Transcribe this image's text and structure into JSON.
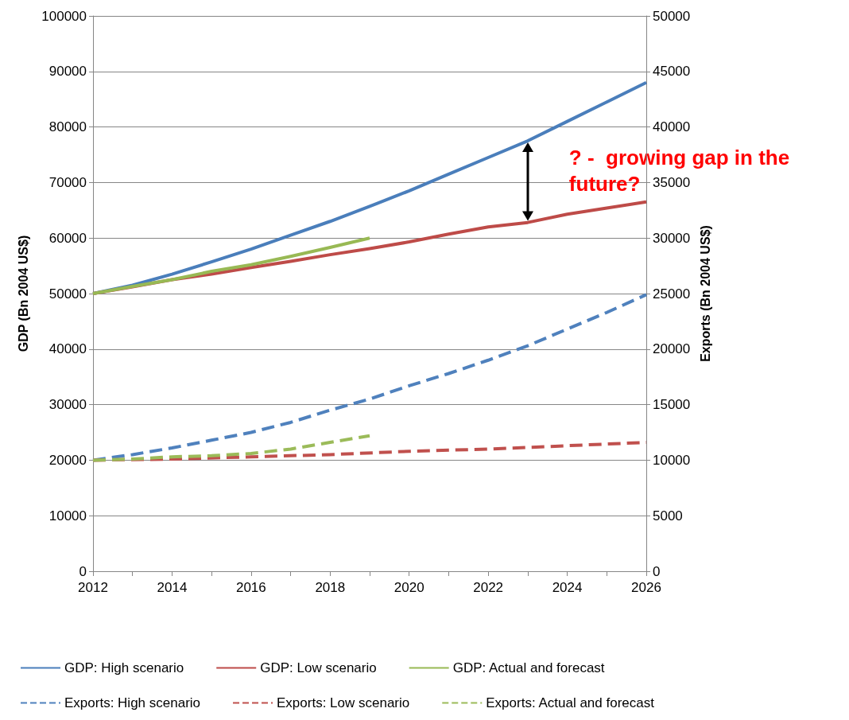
{
  "chart_data": {
    "type": "line",
    "ylabel": "GDP (Bn 2004 US$)",
    "y2label": "Exports (Bn 2004 US$)",
    "xlim": [
      2012,
      2026
    ],
    "xticks": [
      2012,
      {
        "value": 2013,
        "label": null
      },
      2014,
      {
        "value": 2015,
        "label": null
      },
      2016,
      {
        "value": 2017,
        "label": null
      },
      2018,
      {
        "value": 2019,
        "label": null
      },
      2020,
      {
        "value": 2021,
        "label": null
      },
      2022,
      {
        "value": 2023,
        "label": null
      },
      2024,
      {
        "value": 2025,
        "label": null
      },
      2026
    ],
    "ylim": [
      0,
      100000
    ],
    "yticks": [
      0,
      10000,
      20000,
      30000,
      40000,
      50000,
      60000,
      70000,
      80000,
      90000,
      100000
    ],
    "y2lim": [
      0,
      50000
    ],
    "y2ticks": [
      0,
      5000,
      10000,
      15000,
      20000,
      25000,
      30000,
      35000,
      40000,
      45000,
      50000
    ],
    "grid": "y",
    "legend": "bottom",
    "marker": "none",
    "annotations": [
      {
        "text": "? -  growing gap in the future?",
        "x": 2023,
        "y": 77500
      }
    ],
    "series": [
      {
        "name": "GDP: High scenario",
        "color": "#4a7ebb",
        "line_style": "solid",
        "x": [
          2012,
          2013,
          2014,
          2015,
          2016,
          2017,
          2018,
          2019,
          2020,
          2021,
          2022,
          2023,
          2024,
          2025,
          2026
        ],
        "values": [
          50000,
          51500,
          53500,
          55700,
          58000,
          60500,
          63000,
          65700,
          68500,
          71500,
          74500,
          77500,
          81000,
          84500,
          88000
        ]
      },
      {
        "name": "GDP: Low scenario",
        "color": "#be4b48",
        "line_style": "solid",
        "x": [
          2012,
          2013,
          2014,
          2015,
          2016,
          2017,
          2018,
          2019,
          2020,
          2021,
          2022,
          2023,
          2024,
          2025,
          2026
        ],
        "values": [
          50000,
          51200,
          52500,
          53500,
          54700,
          55800,
          57000,
          58100,
          59300,
          60700,
          62000,
          62800,
          64300,
          65400,
          66500
        ]
      },
      {
        "name": "GDP: Actual and forecast",
        "color": "#98b954",
        "line_style": "solid",
        "x": [
          2012,
          2013,
          2014,
          2015,
          2016,
          2017,
          2018,
          2019
        ],
        "values": [
          50000,
          51300,
          52500,
          54000,
          55200,
          56700,
          58300,
          60000
        ]
      },
      {
        "name": "Exports: High scenario",
        "color": "#4f81bd",
        "line_style": "dashed",
        "axis": "y2",
        "x": [
          2012,
          2013,
          2014,
          2015,
          2016,
          2017,
          2018,
          2019,
          2020,
          2021,
          2022,
          2023,
          2024,
          2025,
          2026
        ],
        "values": [
          10000,
          10500,
          11100,
          11800,
          12500,
          13400,
          14500,
          15500,
          16700,
          17800,
          19000,
          20300,
          21800,
          23300,
          24900
        ]
      },
      {
        "name": "Exports: Low scenario",
        "color": "#c0504d",
        "line_style": "dashed",
        "axis": "y2",
        "x": [
          2012,
          2014,
          2016,
          2018,
          2020,
          2022,
          2024,
          2026
        ],
        "values": [
          10000,
          10100,
          10300,
          10500,
          10800,
          11000,
          11300,
          11600
        ]
      },
      {
        "name": "Exports: Actual and forecast",
        "color": "#9bbb59",
        "line_style": "dashed",
        "axis": "y2",
        "x": [
          2012,
          2013,
          2014,
          2015,
          2016,
          2017,
          2018,
          2019
        ],
        "values": [
          10000,
          10100,
          10300,
          10400,
          10600,
          11000,
          11600,
          12200
        ]
      }
    ]
  }
}
